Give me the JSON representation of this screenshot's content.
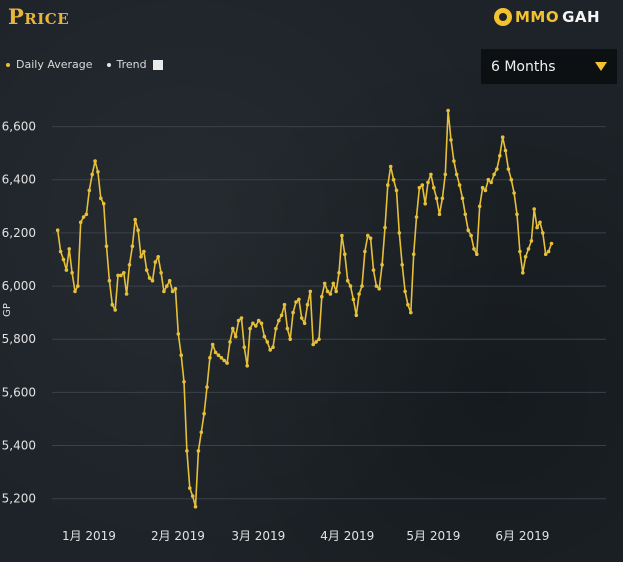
{
  "header": {
    "title": "Price"
  },
  "logo": {
    "text_a": "MMO",
    "text_b": "GAH"
  },
  "legend": {
    "daily_label": "Daily Average",
    "trend_label": "Trend"
  },
  "range_select": {
    "value": "6 Months"
  },
  "colors": {
    "line": "#e7c03a",
    "accent": "#f2c230",
    "grid": "#3a4147"
  },
  "chart_data": {
    "type": "line",
    "title": "Price",
    "ylabel": "GP",
    "xlabel": "",
    "ylim": [
      5150,
      6700
    ],
    "yticks": [
      5200,
      5400,
      5600,
      5800,
      6000,
      6200,
      6400,
      6600
    ],
    "ytick_labels": [
      "5,200",
      "5,400",
      "5,600",
      "5,800",
      "6,000",
      "6,200",
      "6,400",
      "6,600"
    ],
    "xlim": [
      "2018-12-24",
      "2019-07-05"
    ],
    "xticks": [
      "2019-01-01",
      "2019-02-01",
      "2019-03-01",
      "2019-04-01",
      "2019-05-01",
      "2019-06-01"
    ],
    "xtick_labels": [
      "1月 2019",
      "2月 2019",
      "3月 2019",
      "4月 2019",
      "5月 2019",
      "6月 2019"
    ],
    "grid": "horizontal",
    "legend_position": "top-left",
    "series": [
      {
        "name": "Daily Average",
        "points": [
          [
            "2018-12-26",
            6210
          ],
          [
            "2018-12-27",
            6130
          ],
          [
            "2018-12-28",
            6100
          ],
          [
            "2018-12-29",
            6060
          ],
          [
            "2018-12-30",
            6140
          ],
          [
            "2018-12-31",
            6050
          ],
          [
            "2019-01-01",
            5980
          ],
          [
            "2019-01-02",
            6000
          ],
          [
            "2019-01-03",
            6240
          ],
          [
            "2019-01-04",
            6260
          ],
          [
            "2019-01-05",
            6270
          ],
          [
            "2019-01-06",
            6360
          ],
          [
            "2019-01-07",
            6420
          ],
          [
            "2019-01-08",
            6470
          ],
          [
            "2019-01-09",
            6430
          ],
          [
            "2019-01-10",
            6330
          ],
          [
            "2019-01-11",
            6310
          ],
          [
            "2019-01-12",
            6150
          ],
          [
            "2019-01-13",
            6020
          ],
          [
            "2019-01-14",
            5930
          ],
          [
            "2019-01-15",
            5910
          ],
          [
            "2019-01-16",
            6040
          ],
          [
            "2019-01-17",
            6040
          ],
          [
            "2019-01-18",
            6050
          ],
          [
            "2019-01-19",
            5970
          ],
          [
            "2019-01-20",
            6080
          ],
          [
            "2019-01-21",
            6150
          ],
          [
            "2019-01-22",
            6250
          ],
          [
            "2019-01-23",
            6210
          ],
          [
            "2019-01-24",
            6110
          ],
          [
            "2019-01-25",
            6130
          ],
          [
            "2019-01-26",
            6060
          ],
          [
            "2019-01-27",
            6030
          ],
          [
            "2019-01-28",
            6020
          ],
          [
            "2019-01-29",
            6090
          ],
          [
            "2019-01-30",
            6110
          ],
          [
            "2019-01-31",
            6050
          ],
          [
            "2019-02-01",
            5980
          ],
          [
            "2019-02-02",
            6000
          ],
          [
            "2019-02-03",
            6020
          ],
          [
            "2019-02-04",
            5980
          ],
          [
            "2019-02-05",
            5990
          ],
          [
            "2019-02-06",
            5820
          ],
          [
            "2019-02-07",
            5740
          ],
          [
            "2019-02-08",
            5640
          ],
          [
            "2019-02-09",
            5380
          ],
          [
            "2019-02-10",
            5240
          ],
          [
            "2019-02-11",
            5210
          ],
          [
            "2019-02-12",
            5170
          ],
          [
            "2019-02-13",
            5380
          ],
          [
            "2019-02-14",
            5450
          ],
          [
            "2019-02-15",
            5520
          ],
          [
            "2019-02-16",
            5620
          ],
          [
            "2019-02-17",
            5730
          ],
          [
            "2019-02-18",
            5780
          ],
          [
            "2019-02-19",
            5750
          ],
          [
            "2019-02-20",
            5740
          ],
          [
            "2019-02-21",
            5730
          ],
          [
            "2019-02-22",
            5720
          ],
          [
            "2019-02-23",
            5710
          ],
          [
            "2019-02-24",
            5790
          ],
          [
            "2019-02-25",
            5840
          ],
          [
            "2019-02-26",
            5810
          ],
          [
            "2019-02-27",
            5870
          ],
          [
            "2019-02-28",
            5880
          ],
          [
            "2019-03-01",
            5770
          ],
          [
            "2019-03-02",
            5700
          ],
          [
            "2019-03-03",
            5840
          ],
          [
            "2019-03-04",
            5860
          ],
          [
            "2019-03-05",
            5850
          ],
          [
            "2019-03-06",
            5870
          ],
          [
            "2019-03-07",
            5860
          ],
          [
            "2019-03-08",
            5810
          ],
          [
            "2019-03-09",
            5790
          ],
          [
            "2019-03-10",
            5760
          ],
          [
            "2019-03-11",
            5770
          ],
          [
            "2019-03-12",
            5840
          ],
          [
            "2019-03-13",
            5870
          ],
          [
            "2019-03-14",
            5890
          ],
          [
            "2019-03-15",
            5930
          ],
          [
            "2019-03-16",
            5840
          ],
          [
            "2019-03-17",
            5800
          ],
          [
            "2019-03-18",
            5900
          ],
          [
            "2019-03-19",
            5940
          ],
          [
            "2019-03-20",
            5950
          ],
          [
            "2019-03-21",
            5880
          ],
          [
            "2019-03-22",
            5860
          ],
          [
            "2019-03-23",
            5930
          ],
          [
            "2019-03-24",
            5980
          ],
          [
            "2019-03-25",
            5780
          ],
          [
            "2019-03-26",
            5790
          ],
          [
            "2019-03-27",
            5800
          ],
          [
            "2019-03-28",
            5960
          ],
          [
            "2019-03-29",
            6010
          ],
          [
            "2019-03-30",
            5980
          ],
          [
            "2019-03-31",
            5970
          ],
          [
            "2019-04-01",
            6010
          ],
          [
            "2019-04-02",
            5980
          ],
          [
            "2019-04-03",
            6050
          ],
          [
            "2019-04-04",
            6190
          ],
          [
            "2019-04-05",
            6120
          ],
          [
            "2019-04-06",
            6020
          ],
          [
            "2019-04-07",
            6000
          ],
          [
            "2019-04-08",
            5950
          ],
          [
            "2019-04-09",
            5890
          ],
          [
            "2019-04-10",
            5970
          ],
          [
            "2019-04-11",
            6000
          ],
          [
            "2019-04-12",
            6130
          ],
          [
            "2019-04-13",
            6190
          ],
          [
            "2019-04-14",
            6180
          ],
          [
            "2019-04-15",
            6060
          ],
          [
            "2019-04-16",
            6000
          ],
          [
            "2019-04-17",
            5990
          ],
          [
            "2019-04-18",
            6080
          ],
          [
            "2019-04-19",
            6220
          ],
          [
            "2019-04-20",
            6380
          ],
          [
            "2019-04-21",
            6450
          ],
          [
            "2019-04-22",
            6400
          ],
          [
            "2019-04-23",
            6360
          ],
          [
            "2019-04-24",
            6200
          ],
          [
            "2019-04-25",
            6080
          ],
          [
            "2019-04-26",
            5980
          ],
          [
            "2019-04-27",
            5930
          ],
          [
            "2019-04-28",
            5900
          ],
          [
            "2019-04-29",
            6120
          ],
          [
            "2019-04-30",
            6260
          ],
          [
            "2019-05-01",
            6370
          ],
          [
            "2019-05-02",
            6380
          ],
          [
            "2019-05-03",
            6310
          ],
          [
            "2019-05-04",
            6390
          ],
          [
            "2019-05-05",
            6420
          ],
          [
            "2019-05-06",
            6370
          ],
          [
            "2019-05-07",
            6330
          ],
          [
            "2019-05-08",
            6270
          ],
          [
            "2019-05-09",
            6330
          ],
          [
            "2019-05-10",
            6420
          ],
          [
            "2019-05-11",
            6660
          ],
          [
            "2019-05-12",
            6550
          ],
          [
            "2019-05-13",
            6470
          ],
          [
            "2019-05-14",
            6420
          ],
          [
            "2019-05-15",
            6380
          ],
          [
            "2019-05-16",
            6330
          ],
          [
            "2019-05-17",
            6270
          ],
          [
            "2019-05-18",
            6210
          ],
          [
            "2019-05-19",
            6190
          ],
          [
            "2019-05-20",
            6140
          ],
          [
            "2019-05-21",
            6120
          ],
          [
            "2019-05-22",
            6300
          ],
          [
            "2019-05-23",
            6370
          ],
          [
            "2019-05-24",
            6360
          ],
          [
            "2019-05-25",
            6400
          ],
          [
            "2019-05-26",
            6390
          ],
          [
            "2019-05-27",
            6420
          ],
          [
            "2019-05-28",
            6440
          ],
          [
            "2019-05-29",
            6490
          ],
          [
            "2019-05-30",
            6560
          ],
          [
            "2019-05-31",
            6510
          ],
          [
            "2019-06-01",
            6440
          ],
          [
            "2019-06-02",
            6400
          ],
          [
            "2019-06-03",
            6350
          ],
          [
            "2019-06-04",
            6270
          ],
          [
            "2019-06-05",
            6130
          ],
          [
            "2019-06-06",
            6050
          ],
          [
            "2019-06-07",
            6110
          ],
          [
            "2019-06-08",
            6140
          ],
          [
            "2019-06-09",
            6170
          ],
          [
            "2019-06-10",
            6290
          ],
          [
            "2019-06-11",
            6220
          ],
          [
            "2019-06-12",
            6240
          ],
          [
            "2019-06-13",
            6200
          ],
          [
            "2019-06-14",
            6120
          ],
          [
            "2019-06-15",
            6130
          ],
          [
            "2019-06-16",
            6160
          ]
        ]
      }
    ]
  }
}
